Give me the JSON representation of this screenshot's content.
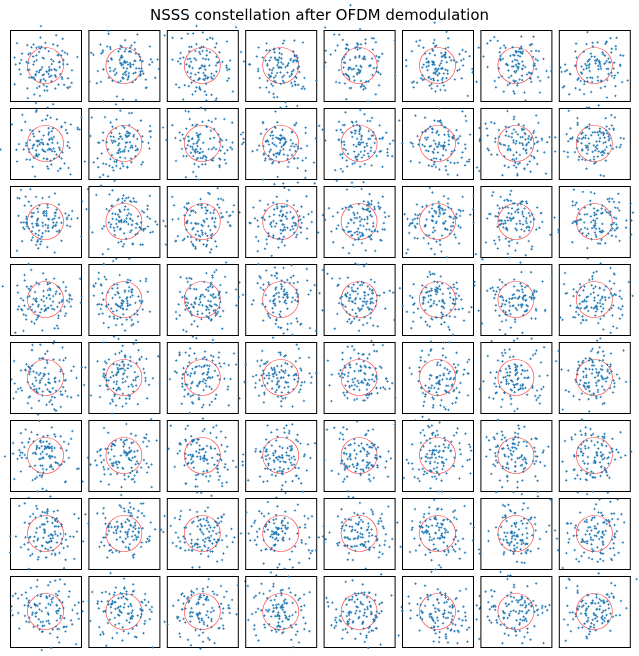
{
  "chart_data": {
    "type": "scatter",
    "title": "NSSS constellation after OFDM demodulation",
    "layout": {
      "rows": 8,
      "cols": 8
    },
    "panel_count": 64,
    "points_per_panel_approx": 110,
    "marker": "+",
    "reference": "unit circle",
    "axes_ticks": "none",
    "grid": false,
    "colors": {
      "points": "#1f77b4",
      "circle": "#ff0000",
      "frame": "#000000"
    },
    "note_on_values": "individual point values not legible; scattered noisy constellation around origin extending beyond unit circle"
  }
}
